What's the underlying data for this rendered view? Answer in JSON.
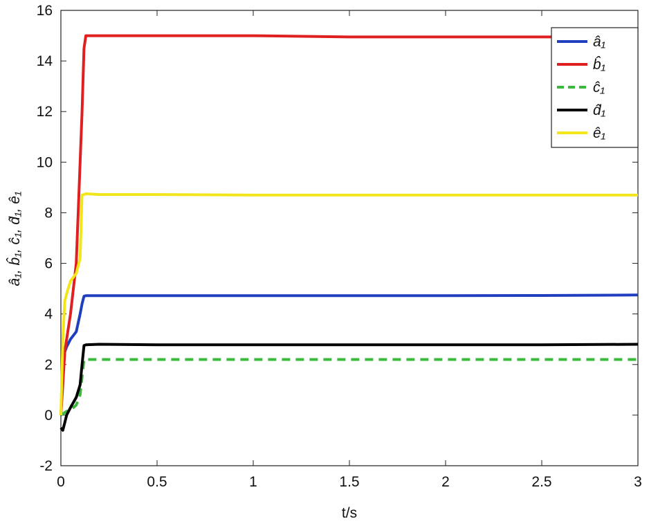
{
  "chart_data": {
    "type": "line",
    "xlabel": "t/s",
    "ylabel": "â₁, b̂₁, ĉ₁, d̂₁, ê₁",
    "x": [
      0,
      0.01,
      0.02,
      0.03,
      0.05,
      0.08,
      0.1,
      0.11,
      0.12,
      0.13,
      0.2,
      0.5,
      1,
      1.5,
      2,
      2.5,
      3
    ],
    "series": [
      {
        "name": "â₁",
        "color": "#1f3fbf",
        "linestyle": "solid",
        "values": [
          0,
          1.5,
          2.5,
          2.7,
          3,
          3.3,
          4,
          4.4,
          4.7,
          4.72,
          4.72,
          4.72,
          4.72,
          4.72,
          4.72,
          4.73,
          4.75
        ]
      },
      {
        "name": "b̂₁",
        "color": "#e02020",
        "linestyle": "solid",
        "values": [
          0,
          1.2,
          2.5,
          3,
          4,
          6,
          10,
          12,
          14.5,
          15,
          15,
          15,
          15,
          14.95,
          14.95,
          14.95,
          14.95
        ]
      },
      {
        "name": "ĉ₁",
        "color": "#3cb83c",
        "linestyle": "dashed",
        "values": [
          0,
          0.05,
          0.1,
          0.15,
          0.2,
          0.4,
          0.8,
          1.5,
          2.2,
          2.2,
          2.2,
          2.2,
          2.2,
          2.2,
          2.2,
          2.2,
          2.2
        ]
      },
      {
        "name": "d̂₁",
        "color": "#000000",
        "linestyle": "solid",
        "values": [
          -0.5,
          -0.6,
          -0.3,
          0,
          0.3,
          0.7,
          1.2,
          2,
          2.75,
          2.78,
          2.8,
          2.78,
          2.78,
          2.78,
          2.78,
          2.78,
          2.8
        ]
      },
      {
        "name": "ê₁",
        "color": "#f2e61a",
        "linestyle": "solid",
        "values": [
          0,
          3,
          4.5,
          4.8,
          5.3,
          5.6,
          6.2,
          8.7,
          8.72,
          8.75,
          8.72,
          8.72,
          8.7,
          8.7,
          8.7,
          8.7,
          8.7
        ]
      }
    ],
    "xlim": [
      0,
      3
    ],
    "xticks": [
      0,
      0.5,
      1,
      1.5,
      2,
      2.5,
      3
    ],
    "ylim": [
      -2,
      16
    ],
    "yticks": [
      -2,
      0,
      2,
      4,
      6,
      8,
      10,
      12,
      14,
      16
    ],
    "legend": "upper-right",
    "grid": false
  }
}
